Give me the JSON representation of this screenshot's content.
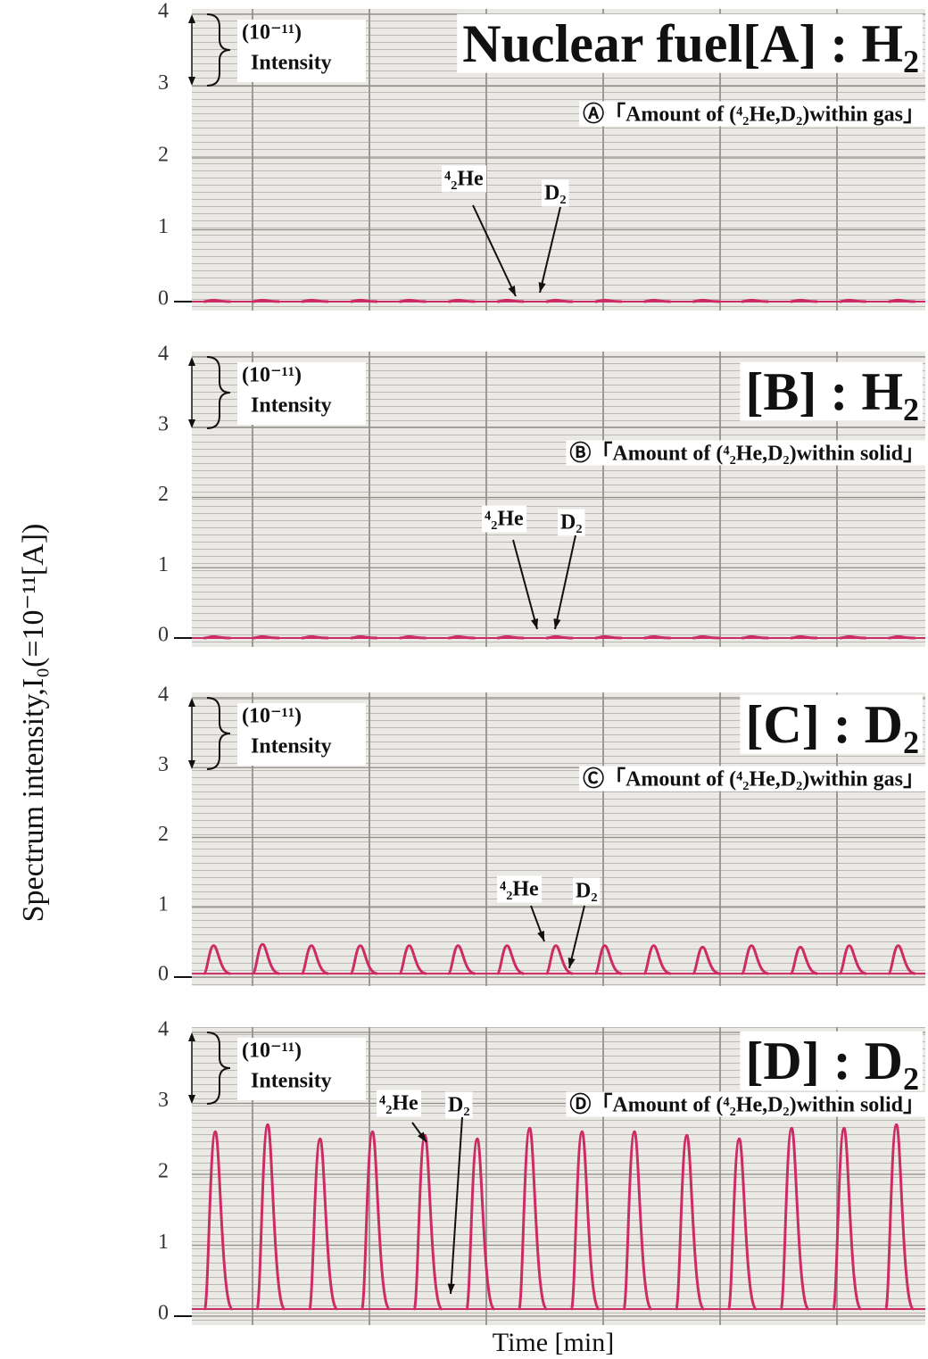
{
  "y_label": "Spectrum intensity,I₀(=10⁻¹¹[A])",
  "x_label": "Time [min]",
  "chart_data": [
    {
      "type": "line",
      "title": "Nuclear fuel[A] : H₂",
      "subtitle": "Ⓐ「Amount of (⁴₂He,D₂)within gas」",
      "unit_label": "(10⁻¹¹)",
      "intensity_label": "Intensity",
      "he_label": "⁴₂He",
      "d2_label": "D₂",
      "color": "#cc2b66",
      "baseline": 0,
      "values": [
        0.02,
        0.02,
        0.02,
        0.02,
        0.02,
        0.02,
        0.02,
        0.02,
        0.02,
        0.02,
        0.02,
        0.02,
        0.02,
        0.02,
        0.02
      ],
      "ylim": [
        0,
        4
      ],
      "yticks": [
        0,
        1,
        2,
        3,
        4
      ]
    },
    {
      "type": "line",
      "title": "[B] : H₂",
      "subtitle": "Ⓑ「Amount of (⁴₂He,D₂)within solid」",
      "unit_label": "(10⁻¹¹)",
      "intensity_label": "Intensity",
      "he_label": "⁴₂He",
      "d2_label": "D₂",
      "color": "#cc2b66",
      "baseline": 0,
      "values": [
        0.02,
        0.02,
        0.02,
        0.02,
        0.02,
        0.02,
        0.02,
        0.02,
        0.02,
        0.02,
        0.02,
        0.02,
        0.02,
        0.02,
        0.02
      ],
      "ylim": [
        0,
        4
      ],
      "yticks": [
        0,
        1,
        2,
        3,
        4
      ]
    },
    {
      "type": "line",
      "title": "[C] : D₂",
      "subtitle": "Ⓒ「Amount of (⁴₂He,D₂)within gas」",
      "unit_label": "(10⁻¹¹)",
      "intensity_label": "Intensity",
      "he_label": "⁴₂He",
      "d2_label": "D₂",
      "color": "#cc2b66",
      "baseline": 0.05,
      "values": [
        0.45,
        0.47,
        0.45,
        0.45,
        0.45,
        0.45,
        0.45,
        0.45,
        0.45,
        0.45,
        0.43,
        0.45,
        0.43,
        0.45,
        0.45
      ],
      "ylim": [
        0,
        4
      ],
      "yticks": [
        0,
        1,
        2,
        3,
        4
      ]
    },
    {
      "type": "line",
      "title": "[D] : D₂",
      "subtitle": "Ⓓ「Amount of (⁴₂He,D₂)within solid」",
      "unit_label": "(10⁻¹¹)",
      "intensity_label": "Intensity",
      "he_label": "⁴₂He",
      "d2_label": "D₂",
      "color": "#cc2b66",
      "baseline": 0.1,
      "values": [
        2.6,
        2.7,
        2.5,
        2.6,
        2.55,
        2.5,
        2.65,
        2.6,
        2.6,
        2.55,
        2.5,
        2.65,
        2.65,
        2.7
      ],
      "ylim": [
        0,
        4
      ],
      "yticks": [
        0,
        1,
        2,
        3,
        4
      ]
    }
  ]
}
